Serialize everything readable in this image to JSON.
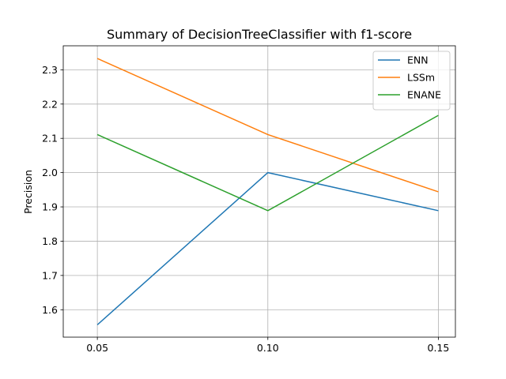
{
  "chart_data": {
    "type": "line",
    "title": "Summary of DecisionTreeClassifier with f1-score",
    "xlabel": "",
    "ylabel": "Precision",
    "x": [
      0.05,
      0.1,
      0.15
    ],
    "x_tick_labels": [
      "0.05",
      "0.10",
      "0.15"
    ],
    "xlim": [
      0.04,
      0.155
    ],
    "ylim": [
      1.52,
      2.37
    ],
    "y_ticks": [
      1.6,
      1.7,
      1.8,
      1.9,
      2.0,
      2.1,
      2.2,
      2.3
    ],
    "y_tick_labels": [
      "1.6",
      "1.7",
      "1.8",
      "1.9",
      "2.0",
      "2.1",
      "2.2",
      "2.3"
    ],
    "grid": true,
    "legend_position": "top-right",
    "series": [
      {
        "name": "ENN",
        "color": "#1f77b4",
        "values": [
          1.556,
          2.0,
          1.889
        ]
      },
      {
        "name": "LSSm",
        "color": "#ff7f0e",
        "values": [
          2.333,
          2.111,
          1.944
        ]
      },
      {
        "name": "ENANE",
        "color": "#2ca02c",
        "values": [
          2.111,
          1.889,
          2.167
        ]
      }
    ]
  }
}
